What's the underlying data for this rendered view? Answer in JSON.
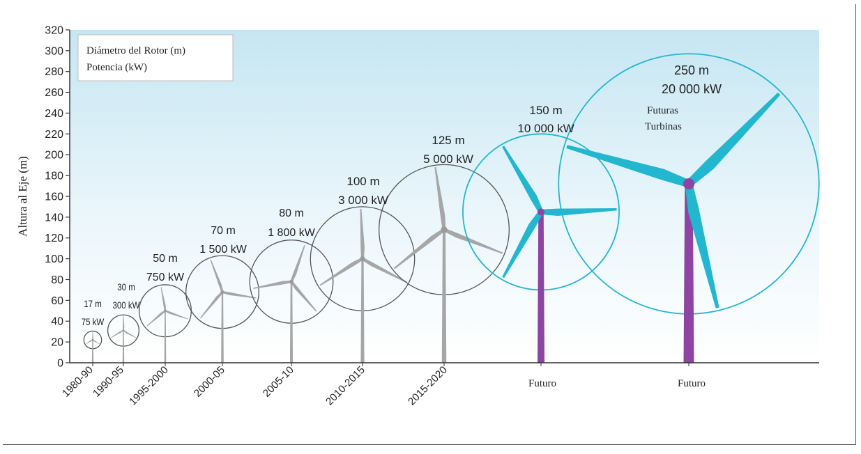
{
  "chart_data": {
    "type": "scatter",
    "title": "",
    "ylabel": "Altura al Eje (m)",
    "ylim": [
      0,
      320
    ],
    "yticks": [
      0,
      20,
      40,
      60,
      80,
      100,
      120,
      140,
      160,
      180,
      200,
      220,
      240,
      260,
      280,
      300,
      320
    ],
    "legend": {
      "position": "top-left",
      "entries": [
        "Diámetro del Rotor (m)",
        "Potencia (kW)"
      ]
    },
    "annotation": "Futuras Turbinas",
    "turbines": [
      {
        "period": "1980-90",
        "hub_height": 22,
        "diameter_label": "17 m",
        "power_label": "75 kW",
        "diameter": 17,
        "power": 75,
        "future": false
      },
      {
        "period": "1990-95",
        "hub_height": 31,
        "diameter_label": "30 m",
        "power_label": "300 kW",
        "diameter": 30,
        "power": 300,
        "future": false
      },
      {
        "period": "1995-2000",
        "hub_height": 50,
        "diameter_label": "50 m",
        "power_label": "750 kW",
        "diameter": 50,
        "power": 750,
        "future": false
      },
      {
        "period": "2000-05",
        "hub_height": 68,
        "diameter_label": "70 m",
        "power_label": "1 500 kW",
        "diameter": 70,
        "power": 1500,
        "future": false
      },
      {
        "period": "2005-10",
        "hub_height": 78,
        "diameter_label": "80 m",
        "power_label": "1 800 kW",
        "diameter": 80,
        "power": 1800,
        "future": false
      },
      {
        "period": "2010-2015",
        "hub_height": 100,
        "diameter_label": "100 m",
        "power_label": "3 000 kW",
        "diameter": 100,
        "power": 3000,
        "future": false
      },
      {
        "period": "2015-2020",
        "hub_height": 128,
        "diameter_label": "125 m",
        "power_label": "5 000 kW",
        "diameter": 125,
        "power": 5000,
        "future": false
      },
      {
        "period": "Futuro",
        "hub_height": 145,
        "diameter_label": "150 m",
        "power_label": "10 000 kW",
        "diameter": 150,
        "power": 10000,
        "future": true
      },
      {
        "period": "Futuro",
        "hub_height": 172,
        "diameter_label": "250 m",
        "power_label": "20 000 kW",
        "diameter": 250,
        "power": 20000,
        "future": true
      }
    ]
  },
  "colors": {
    "past": "#a6a6a6",
    "circle_past": "#555555",
    "future_blade": "#22b6cf",
    "future_tower": "#8e44a3",
    "sky_top": "#c6e6f2",
    "sky_bottom": "#ffffff"
  }
}
